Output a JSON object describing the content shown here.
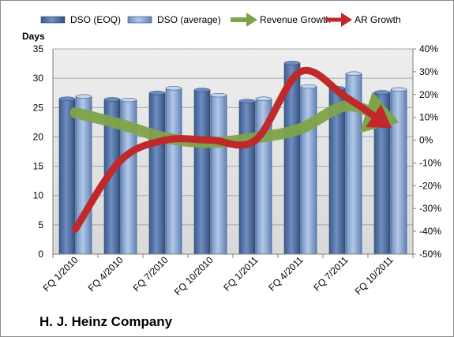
{
  "chart_data": {
    "type": "bar",
    "title": "H. J. Heinz Company",
    "ylabel": "Days",
    "categories": [
      "FQ 1/2010",
      "FQ 4/2010",
      "FQ 7/2010",
      "FQ 10/2010",
      "FQ 1/2011",
      "FQ 4/2011",
      "FQ 7/2011",
      "FQ 10/2011"
    ],
    "ylim": [
      0,
      35
    ],
    "yticks": [
      0,
      5,
      10,
      15,
      20,
      25,
      30,
      35
    ],
    "y2lim": [
      -0.5,
      0.4
    ],
    "y2ticks": [
      "-50%",
      "-40%",
      "-30%",
      "-20%",
      "-10%",
      "0%",
      "10%",
      "20%",
      "30%",
      "40%"
    ],
    "legend_position": "top",
    "series": [
      {
        "name": "DSO (EOQ)",
        "type": "bar",
        "axis": "left",
        "color": "#4a6a9c",
        "values": [
          26.5,
          26.4,
          27.5,
          28.0,
          26.1,
          32.6,
          28.3,
          27.6
        ]
      },
      {
        "name": "DSO (average)",
        "type": "bar",
        "axis": "left",
        "color": "#88a6d0",
        "values": [
          26.9,
          26.3,
          28.3,
          27.1,
          26.5,
          28.6,
          30.8,
          28.1
        ]
      },
      {
        "name": "Revenue Growth",
        "type": "line",
        "axis": "right",
        "color": "#7fa34a",
        "values": [
          0.12,
          0.07,
          0.01,
          -0.01,
          0.01,
          0.05,
          0.15,
          0.1
        ]
      },
      {
        "name": "AR Growth",
        "type": "line",
        "axis": "right",
        "color": "#c0282a",
        "values": [
          -0.39,
          -0.09,
          0.0,
          0.0,
          0.0,
          0.3,
          0.19,
          0.08
        ]
      }
    ]
  }
}
